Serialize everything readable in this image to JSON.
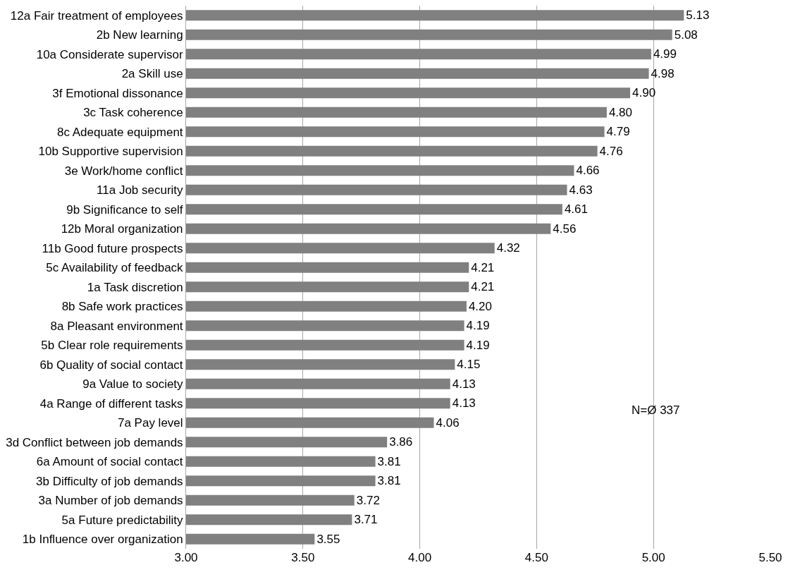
{
  "chart_data": {
    "type": "bar",
    "orientation": "horizontal",
    "categories": [
      "12a Fair treatment of employees",
      "2b New learning",
      "10a Considerate supervisor",
      "2a Skill use",
      "3f Emotional dissonance",
      "3c Task coherence",
      "8c Adequate equipment",
      "10b Supportive supervision",
      "3e Work/home conflict",
      "11a Job security",
      "9b Significance to self",
      "12b Moral organization",
      "11b Good future prospects",
      "5c Availability of feedback",
      "1a Task discretion",
      "8b Safe work practices",
      "8a Pleasant environment",
      "5b Clear role requirements",
      "6b Quality of social contact",
      "9a Value to society",
      "4a Range of different tasks",
      "7a Pay level",
      "3d Conflict between job demands",
      "6a Amount of social contact",
      "3b Difficulty of job demands",
      "3a Number of job demands",
      "5a Future predictability",
      "1b Influence over organization"
    ],
    "values": [
      5.13,
      5.08,
      4.99,
      4.98,
      4.9,
      4.8,
      4.79,
      4.76,
      4.66,
      4.63,
      4.61,
      4.56,
      4.32,
      4.21,
      4.21,
      4.2,
      4.19,
      4.19,
      4.15,
      4.13,
      4.13,
      4.06,
      3.86,
      3.81,
      3.81,
      3.72,
      3.71,
      3.55
    ],
    "color": "#808080",
    "xlim": [
      3,
      5.5
    ],
    "xticks": [
      {
        "value": 3,
        "label": "3.00"
      },
      {
        "value": 3.5,
        "label": "3.50"
      },
      {
        "value": 4,
        "label": "4.00"
      },
      {
        "value": 4.5,
        "label": "4.50"
      },
      {
        "value": 5,
        "label": "5.00"
      },
      {
        "value": 5.5,
        "label": "5.50"
      }
    ],
    "value_labels": [
      "5.13",
      "5.08",
      "4.99",
      "4.98",
      "4.90",
      "4.80",
      "4.79",
      "4.76",
      "4.66",
      "4.63",
      "4.61",
      "4.56",
      "4.32",
      "4.21",
      "4.21",
      "4.20",
      "4.19",
      "4.19",
      "4.15",
      "4.13",
      "4.13",
      "4.06",
      "3.86",
      "3.81",
      "3.81",
      "3.72",
      "3.71",
      "3.55"
    ],
    "grid": "x",
    "annotations": [
      "N=Ø 337"
    ]
  }
}
